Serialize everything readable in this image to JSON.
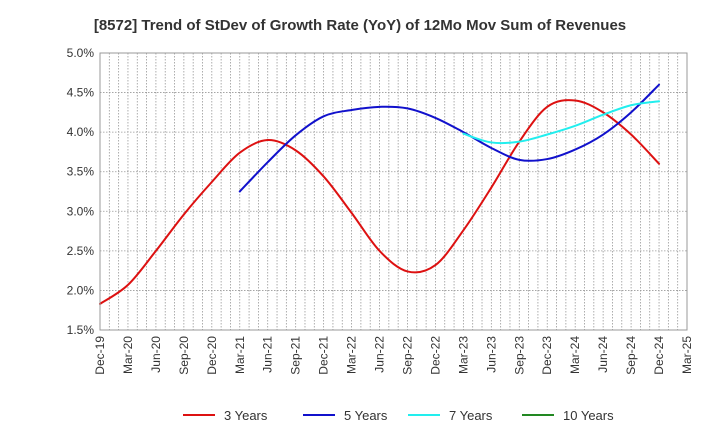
{
  "chart_data": {
    "type": "line",
    "title": "[8572]  Trend of StDev of Growth Rate (YoY) of 12Mo Mov Sum of Revenues",
    "xlabel": "",
    "ylabel": "",
    "ylim": [
      0.015,
      0.05
    ],
    "y_ticks": [
      {
        "value": 0.05,
        "label": "5.0%"
      },
      {
        "value": 0.045,
        "label": "4.5%"
      },
      {
        "value": 0.04,
        "label": "4.0%"
      },
      {
        "value": 0.035,
        "label": "3.5%"
      },
      {
        "value": 0.03,
        "label": "3.0%"
      },
      {
        "value": 0.025,
        "label": "2.5%"
      },
      {
        "value": 0.02,
        "label": "2.0%"
      },
      {
        "value": 0.015,
        "label": "1.5%"
      }
    ],
    "x_ticks": [
      "Dec-19",
      "Mar-20",
      "Jun-20",
      "Sep-20",
      "Dec-20",
      "Mar-21",
      "Jun-21",
      "Sep-21",
      "Dec-21",
      "Mar-22",
      "Jun-22",
      "Sep-22",
      "Dec-22",
      "Mar-23",
      "Jun-23",
      "Sep-23",
      "Dec-23",
      "Mar-24",
      "Jun-24",
      "Sep-24",
      "Dec-24",
      "Mar-25"
    ],
    "grid": true,
    "legend_position": "bottom",
    "series": [
      {
        "name": "3 Years",
        "color": "#dd1111",
        "start_index": 0,
        "values": [
          0.0183,
          0.0207,
          0.025,
          0.0296,
          0.0337,
          0.0374,
          0.039,
          0.0377,
          0.0344,
          0.0298,
          0.025,
          0.0224,
          0.0232,
          0.0276,
          0.033,
          0.0388,
          0.0432,
          0.044,
          0.0425,
          0.0397,
          0.036
        ]
      },
      {
        "name": "5 Years",
        "color": "#1111cc",
        "start_index": 5,
        "values": [
          0.0325,
          0.0362,
          0.0396,
          0.042,
          0.0428,
          0.0432,
          0.043,
          0.0418,
          0.04,
          0.038,
          0.0365,
          0.0366,
          0.0378,
          0.0397,
          0.0425,
          0.046
        ]
      },
      {
        "name": "7 Years",
        "color": "#22eeee",
        "start_index": 13,
        "values": [
          0.0398,
          0.0387,
          0.0388,
          0.0397,
          0.0408,
          0.0422,
          0.0434,
          0.0439
        ]
      },
      {
        "name": "10 Years",
        "color": "#228822",
        "start_index": 0,
        "values": []
      }
    ]
  }
}
